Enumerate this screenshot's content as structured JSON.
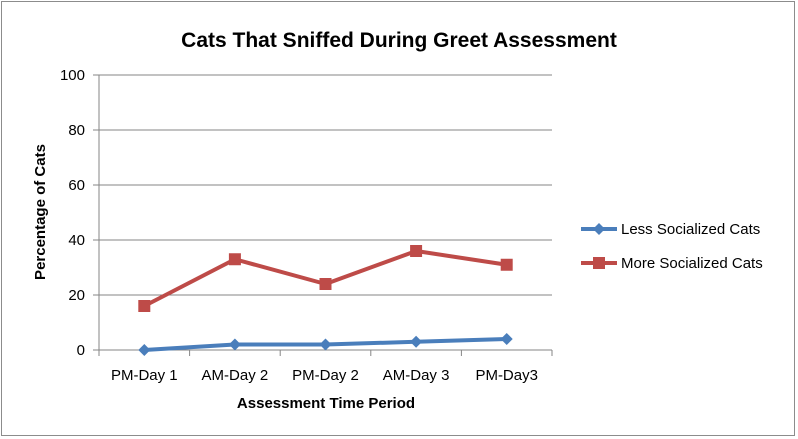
{
  "chart_data": {
    "type": "line",
    "title": "Cats That Sniffed During Greet Assessment",
    "xlabel": "Assessment Time Period",
    "ylabel": "Percentage of Cats",
    "categories": [
      "PM-Day 1",
      "AM-Day 2",
      "PM-Day 2",
      "AM-Day 3",
      "PM-Day3"
    ],
    "ylim": [
      0,
      100
    ],
    "yticks": [
      0,
      20,
      40,
      60,
      80,
      100
    ],
    "grid": true,
    "legend_position": "right",
    "series": [
      {
        "name": "Less Socialized Cats",
        "values": [
          0,
          2,
          2,
          3,
          4
        ],
        "color": "#4a7ebb",
        "marker": "diamond"
      },
      {
        "name": "More Socialized Cats",
        "values": [
          16,
          33,
          24,
          36,
          31
        ],
        "color": "#be4b48",
        "marker": "square"
      }
    ]
  }
}
